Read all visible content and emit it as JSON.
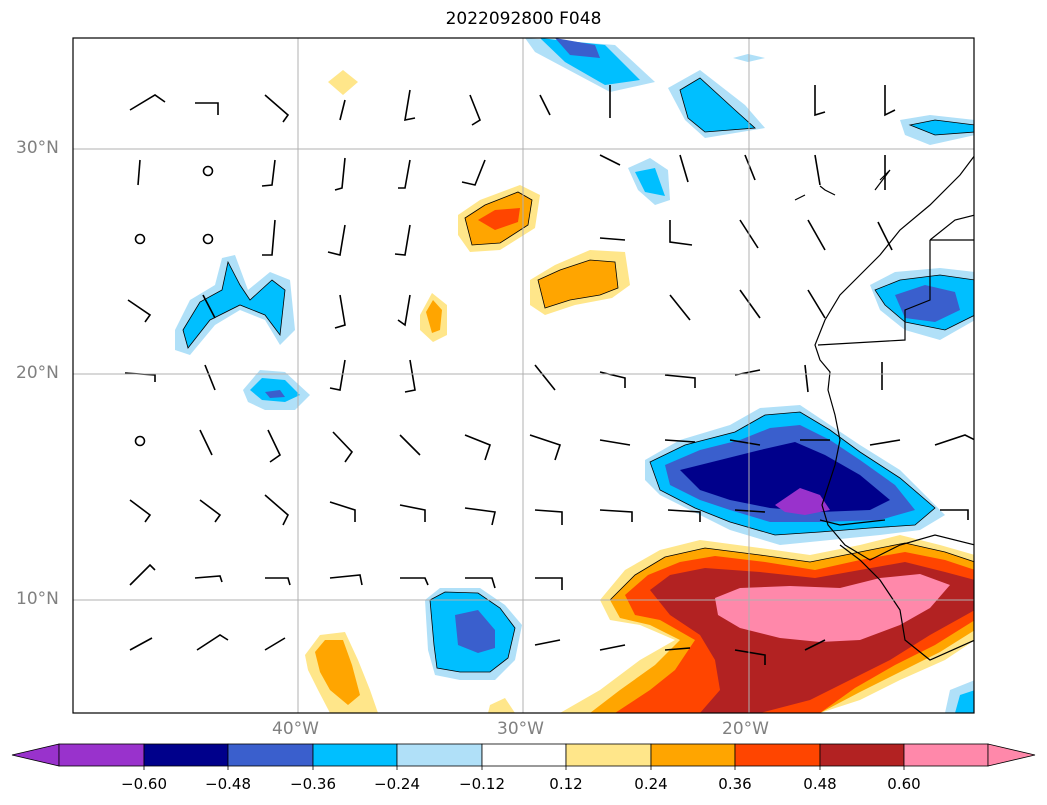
{
  "title": "2022092800 F048",
  "lat_labels": [
    "30°N",
    "20°N",
    "10°N"
  ],
  "lon_labels": [
    "40°W",
    "30°W",
    "20°W"
  ],
  "colorbar": {
    "ticks": [
      "−0.60",
      "−0.48",
      "−0.36",
      "−0.24",
      "−0.12",
      "0.12",
      "0.24",
      "0.36",
      "0.48",
      "0.60"
    ],
    "colors": [
      "#9932cc",
      "#00008b",
      "#3a5fcd",
      "#00bfff",
      "#b0e0f8",
      "#ffffff",
      "#ffe68a",
      "#ffa500",
      "#ff4500",
      "#b22222",
      "#ff88aa"
    ]
  },
  "map_extent": {
    "lon": [
      -50,
      -10
    ],
    "lat": [
      5,
      35
    ]
  }
}
